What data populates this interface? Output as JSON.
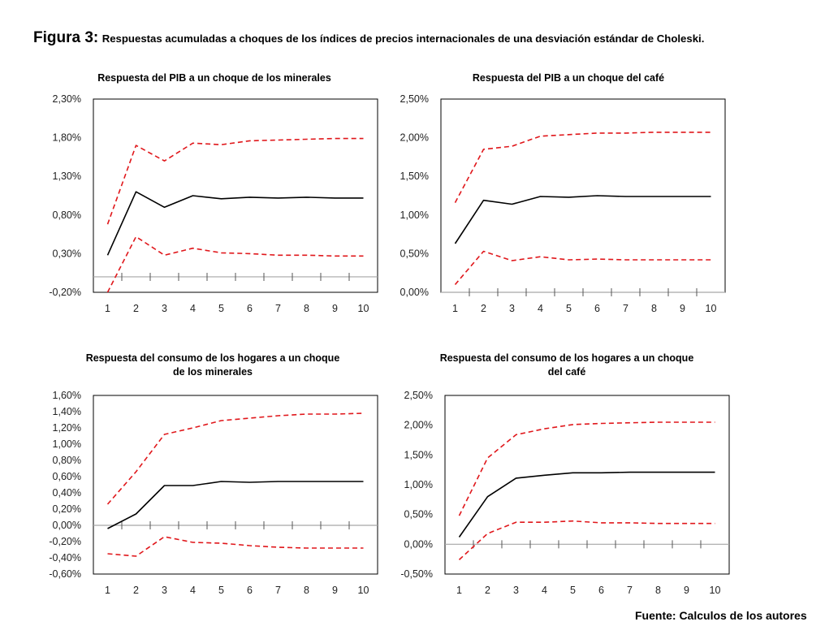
{
  "figure": {
    "label": "Figura 3:",
    "title": "Respuestas acumuladas a choques de los índices de precios internacionales de una desviación estándar de Choleski.",
    "source": "Fuente: Calculos de los autores"
  },
  "colors": {
    "response": "#000000",
    "bands": "#e0171b",
    "zero_axis": "#a6a6a6",
    "frame": "#000000"
  },
  "chart_data": [
    {
      "type": "line",
      "title": [
        "Respuesta del PIB  a un choque de los minerales"
      ],
      "x": [
        1,
        2,
        3,
        4,
        5,
        6,
        7,
        8,
        9,
        10
      ],
      "xtick_labels": [
        "1",
        "2",
        "3",
        "4",
        "5",
        "6",
        "7",
        "8",
        "9",
        "10"
      ],
      "ylim": [
        -0.2,
        2.3
      ],
      "yticks": [
        -0.2,
        0.3,
        0.8,
        1.3,
        1.8,
        2.3
      ],
      "ytick_labels": [
        "-0,20%",
        "0,30%",
        "0,80%",
        "1,30%",
        "1,80%",
        "2,30%"
      ],
      "xlabel": "",
      "ylabel": "",
      "grid": false,
      "legend": "none",
      "series": [
        {
          "name": "response",
          "style": "solid",
          "values": [
            0.28,
            1.1,
            0.9,
            1.05,
            1.01,
            1.03,
            1.02,
            1.03,
            1.02,
            1.02
          ]
        },
        {
          "name": "upper-band",
          "style": "dashed",
          "values": [
            0.68,
            1.7,
            1.5,
            1.73,
            1.71,
            1.76,
            1.77,
            1.78,
            1.79,
            1.79
          ]
        },
        {
          "name": "lower-band",
          "style": "dashed",
          "values": [
            -0.2,
            0.52,
            0.28,
            0.37,
            0.31,
            0.3,
            0.28,
            0.28,
            0.27,
            0.27
          ]
        }
      ]
    },
    {
      "type": "line",
      "title": [
        "Respuesta del PIB a un choque del café"
      ],
      "x": [
        1,
        2,
        3,
        4,
        5,
        6,
        7,
        8,
        9,
        10
      ],
      "xtick_labels": [
        "1",
        "2",
        "3",
        "4",
        "5",
        "6",
        "7",
        "8",
        "9",
        "10"
      ],
      "ylim": [
        0,
        2.5
      ],
      "yticks": [
        0,
        0.5,
        1.0,
        1.5,
        2.0,
        2.5
      ],
      "ytick_labels": [
        "0,00%",
        "0,50%",
        "1,00%",
        "1,50%",
        "2,00%",
        "2,50%"
      ],
      "xlabel": "",
      "ylabel": "",
      "grid": false,
      "legend": "none",
      "series": [
        {
          "name": "response",
          "style": "solid",
          "values": [
            0.63,
            1.19,
            1.14,
            1.24,
            1.23,
            1.25,
            1.24,
            1.24,
            1.24,
            1.24
          ]
        },
        {
          "name": "upper-band",
          "style": "dashed",
          "values": [
            1.16,
            1.85,
            1.89,
            2.02,
            2.04,
            2.06,
            2.06,
            2.07,
            2.07,
            2.07
          ]
        },
        {
          "name": "lower-band",
          "style": "dashed",
          "values": [
            0.1,
            0.53,
            0.41,
            0.46,
            0.42,
            0.43,
            0.42,
            0.42,
            0.42,
            0.42
          ]
        }
      ]
    },
    {
      "type": "line",
      "title": [
        "Respuesta del consumo de los hogares a un choque",
        "de  los minerales"
      ],
      "x": [
        1,
        2,
        3,
        4,
        5,
        6,
        7,
        8,
        9,
        10
      ],
      "xtick_labels": [
        "1",
        "2",
        "3",
        "4",
        "5",
        "6",
        "7",
        "8",
        "9",
        "10"
      ],
      "ylim": [
        -0.6,
        1.6
      ],
      "yticks": [
        -0.6,
        -0.4,
        -0.2,
        0.0,
        0.2,
        0.4,
        0.6,
        0.8,
        1.0,
        1.2,
        1.4,
        1.6
      ],
      "ytick_labels": [
        "-0,60%",
        "-0,40%",
        "-0,20%",
        "0,00%",
        "0,20%",
        "0,40%",
        "0,60%",
        "0,80%",
        "1,00%",
        "1,20%",
        "1,40%",
        "1,60%"
      ],
      "xlabel": "",
      "ylabel": "",
      "grid": false,
      "legend": "none",
      "series": [
        {
          "name": "response",
          "style": "solid",
          "values": [
            -0.04,
            0.14,
            0.49,
            0.49,
            0.54,
            0.53,
            0.54,
            0.54,
            0.54,
            0.54
          ]
        },
        {
          "name": "upper-band",
          "style": "dashed",
          "values": [
            0.26,
            0.66,
            1.12,
            1.2,
            1.29,
            1.32,
            1.35,
            1.37,
            1.37,
            1.38
          ]
        },
        {
          "name": "lower-band",
          "style": "dashed",
          "values": [
            -0.35,
            -0.38,
            -0.14,
            -0.21,
            -0.22,
            -0.25,
            -0.27,
            -0.28,
            -0.28,
            -0.28
          ]
        }
      ]
    },
    {
      "type": "line",
      "title": [
        "Respuesta del consumo de los hogares a un choque",
        "del café"
      ],
      "x": [
        1,
        2,
        3,
        4,
        5,
        6,
        7,
        8,
        9,
        10
      ],
      "xtick_labels": [
        "1",
        "2",
        "3",
        "4",
        "5",
        "6",
        "7",
        "8",
        "9",
        "10"
      ],
      "ylim": [
        -0.5,
        2.5
      ],
      "yticks": [
        -0.5,
        0,
        0.5,
        1.0,
        1.5,
        2.0,
        2.5
      ],
      "ytick_labels": [
        "-0,50%",
        "0,00%",
        "0,50%",
        "1,00%",
        "1,50%",
        "2,00%",
        "2,50%"
      ],
      "xlabel": "",
      "ylabel": "",
      "grid": false,
      "legend": "none",
      "series": [
        {
          "name": "response",
          "style": "solid",
          "values": [
            0.12,
            0.8,
            1.11,
            1.16,
            1.2,
            1.2,
            1.21,
            1.21,
            1.21,
            1.21
          ]
        },
        {
          "name": "upper-band",
          "style": "dashed",
          "values": [
            0.48,
            1.45,
            1.84,
            1.94,
            2.01,
            2.03,
            2.04,
            2.05,
            2.05,
            2.05
          ]
        },
        {
          "name": "lower-band",
          "style": "dashed",
          "values": [
            -0.26,
            0.18,
            0.37,
            0.37,
            0.39,
            0.36,
            0.36,
            0.35,
            0.35,
            0.35
          ]
        }
      ]
    }
  ]
}
